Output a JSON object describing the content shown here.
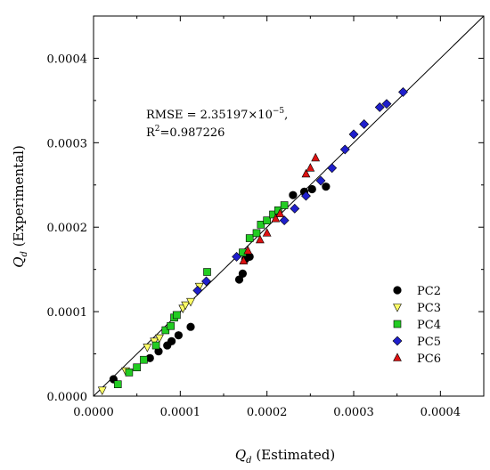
{
  "chart_data": {
    "type": "scatter",
    "xlabel_main": "Q",
    "xlabel_sub": "d",
    "xlabel_rest": " (Estimated)",
    "ylabel_main": "Q",
    "ylabel_sub": "d",
    "ylabel_rest": " (Experimental)",
    "xlim": [
      0,
      0.00045
    ],
    "ylim": [
      0,
      0.00045
    ],
    "xticks": [
      0,
      0.0001,
      0.0002,
      0.0003,
      0.0004
    ],
    "yticks": [
      0,
      0.0001,
      0.0002,
      0.0003,
      0.0004
    ],
    "xtick_labels": [
      "0.0000",
      "0.0001",
      "0.0002",
      "0.0003",
      "0.0004"
    ],
    "ytick_labels": [
      "0.0000",
      "0.0001",
      "0.0002",
      "0.0003",
      "0.0004"
    ],
    "minor_tick_step": 5e-05,
    "grid": false,
    "legend_position": "bottom-right",
    "reference_line": {
      "from": [
        0,
        0
      ],
      "to": [
        0.00045,
        0.00045
      ]
    },
    "annotations": {
      "rmse_prefix": "RMSE = 2.35197×10",
      "rmse_exp": "−5",
      "rmse_suffix": ",",
      "r2_prefix": "R",
      "r2_exp": "2",
      "r2_suffix": "=0.987226"
    },
    "series": [
      {
        "name": "PC2",
        "marker": "circle",
        "color": "#000000",
        "points": [
          [
            2.3e-05,
            2e-05
          ],
          [
            6.5e-05,
            4.5e-05
          ],
          [
            7.5e-05,
            5.3e-05
          ],
          [
            8.5e-05,
            6e-05
          ],
          [
            9e-05,
            6.5e-05
          ],
          [
            9.8e-05,
            7.2e-05
          ],
          [
            0.000112,
            8.2e-05
          ],
          [
            0.000168,
            0.000138
          ],
          [
            0.000172,
            0.000145
          ],
          [
            0.000175,
            0.000162
          ],
          [
            0.00018,
            0.000165
          ],
          [
            0.00023,
            0.000238
          ],
          [
            0.000243,
            0.000242
          ],
          [
            0.000252,
            0.000245
          ],
          [
            0.000268,
            0.000248
          ]
        ]
      },
      {
        "name": "PC3",
        "marker": "triangle-down",
        "color": "#ffff66",
        "points": [
          [
            1e-05,
            7e-06
          ],
          [
            3.7e-05,
            3e-05
          ],
          [
            6.2e-05,
            5.8e-05
          ],
          [
            7e-05,
            6.5e-05
          ],
          [
            7.6e-05,
            6.9e-05
          ],
          [
            9.6e-05,
            9.6e-05
          ],
          [
            0.000103,
            0.000104
          ],
          [
            0.000106,
            0.000108
          ],
          [
            0.000112,
            0.000112
          ],
          [
            0.000122,
            0.00013
          ]
        ]
      },
      {
        "name": "PC4",
        "marker": "square",
        "color": "#22cc22",
        "points": [
          [
            2.8e-05,
            1.4e-05
          ],
          [
            4.1e-05,
            2.8e-05
          ],
          [
            5e-05,
            3.4e-05
          ],
          [
            5.8e-05,
            4.3e-05
          ],
          [
            7.2e-05,
            6e-05
          ],
          [
            8.3e-05,
            7.8e-05
          ],
          [
            8.9e-05,
            8.3e-05
          ],
          [
            9.3e-05,
            9.3e-05
          ],
          [
            9.6e-05,
            9.6e-05
          ],
          [
            0.000131,
            0.000147
          ],
          [
            0.000172,
            0.00017
          ],
          [
            0.00018,
            0.000187
          ],
          [
            0.000188,
            0.000193
          ],
          [
            0.000193,
            0.000203
          ],
          [
            0.0002,
            0.000208
          ],
          [
            0.000207,
            0.000215
          ],
          [
            0.000213,
            0.00022
          ],
          [
            0.00022,
            0.000226
          ]
        ]
      },
      {
        "name": "PC5",
        "marker": "diamond",
        "color": "#1f1fcc",
        "points": [
          [
            0.00012,
            0.000125
          ],
          [
            0.00013,
            0.000136
          ],
          [
            0.000165,
            0.000165
          ],
          [
            0.00022,
            0.000208
          ],
          [
            0.000232,
            0.000222
          ],
          [
            0.000245,
            0.000237
          ],
          [
            0.000262,
            0.000255
          ],
          [
            0.000275,
            0.00027
          ],
          [
            0.00029,
            0.000292
          ],
          [
            0.0003,
            0.00031
          ],
          [
            0.000312,
            0.000322
          ],
          [
            0.00033,
            0.000342
          ],
          [
            0.000338,
            0.000346
          ],
          [
            0.000357,
            0.00036
          ]
        ]
      },
      {
        "name": "PC6",
        "marker": "triangle-up",
        "color": "#dd1111",
        "points": [
          [
            0.000173,
            0.00016
          ],
          [
            0.000178,
            0.000172
          ],
          [
            0.000192,
            0.000185
          ],
          [
            0.0002,
            0.000193
          ],
          [
            0.00021,
            0.00021
          ],
          [
            0.000215,
            0.000216
          ],
          [
            0.000245,
            0.000263
          ],
          [
            0.00025,
            0.00027
          ],
          [
            0.000256,
            0.000282
          ]
        ]
      }
    ]
  }
}
